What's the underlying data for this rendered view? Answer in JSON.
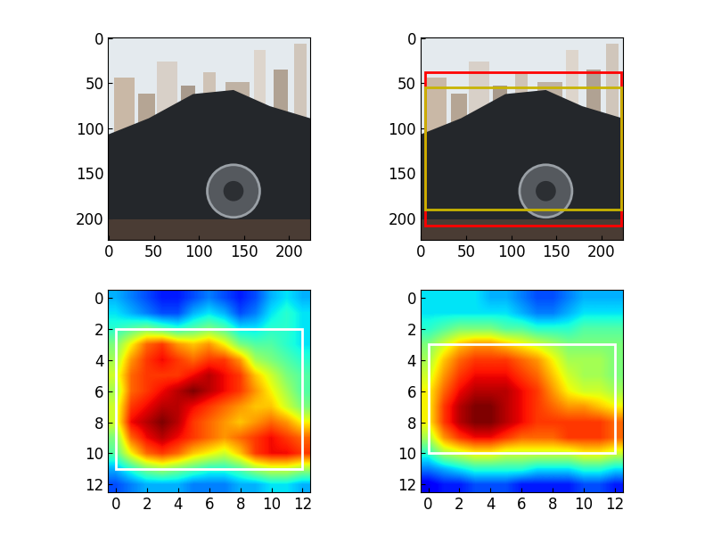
{
  "chart_data": [
    {
      "type": "image",
      "xlim": [
        -0.5,
        223.5
      ],
      "ylim": [
        223.5,
        -0.5
      ],
      "xticks": [
        0,
        50,
        100,
        150,
        200
      ],
      "yticks": [
        0,
        50,
        100,
        150,
        200
      ],
      "boxes": []
    },
    {
      "type": "image",
      "xlim": [
        -0.5,
        223.5
      ],
      "ylim": [
        223.5,
        -0.5
      ],
      "xticks": [
        0,
        50,
        100,
        150,
        200
      ],
      "yticks": [
        0,
        50,
        100,
        150,
        200
      ],
      "boxes": [
        {
          "color": "red",
          "x": [
            5,
            222
          ],
          "y": [
            38,
            208
          ]
        },
        {
          "color": "#c8b400",
          "x": [
            5,
            222
          ],
          "y": [
            55,
            190
          ]
        }
      ]
    },
    {
      "type": "heatmap",
      "xlim": [
        -0.5,
        12.5
      ],
      "ylim": [
        12.5,
        -0.5
      ],
      "xticks": [
        0,
        2,
        4,
        6,
        8,
        10,
        12
      ],
      "yticks": [
        0,
        2,
        4,
        6,
        8,
        10,
        12
      ],
      "value_range": [
        0,
        1
      ],
      "cells": [
        [
          0.3,
          0.25,
          0.2,
          0.15,
          0.15,
          0.2,
          0.25,
          0.2,
          0.15,
          0.2,
          0.3,
          0.35,
          0.3
        ],
        [
          0.35,
          0.3,
          0.25,
          0.2,
          0.2,
          0.3,
          0.35,
          0.3,
          0.2,
          0.25,
          0.35,
          0.4,
          0.35
        ],
        [
          0.4,
          0.45,
          0.5,
          0.45,
          0.4,
          0.45,
          0.5,
          0.45,
          0.35,
          0.35,
          0.4,
          0.4,
          0.35
        ],
        [
          0.5,
          0.65,
          0.8,
          0.85,
          0.75,
          0.7,
          0.75,
          0.65,
          0.5,
          0.45,
          0.45,
          0.4,
          0.35
        ],
        [
          0.55,
          0.75,
          0.85,
          0.9,
          0.85,
          0.8,
          0.85,
          0.85,
          0.75,
          0.55,
          0.5,
          0.45,
          0.4
        ],
        [
          0.6,
          0.8,
          0.85,
          0.85,
          0.85,
          0.9,
          0.95,
          0.9,
          0.85,
          0.7,
          0.6,
          0.5,
          0.45
        ],
        [
          0.55,
          0.8,
          0.85,
          0.9,
          0.95,
          1.0,
          0.95,
          0.9,
          0.85,
          0.75,
          0.65,
          0.55,
          0.45
        ],
        [
          0.6,
          0.85,
          0.9,
          0.95,
          0.95,
          0.9,
          0.85,
          0.8,
          0.75,
          0.7,
          0.7,
          0.6,
          0.5
        ],
        [
          0.6,
          0.9,
          0.95,
          1.0,
          0.95,
          0.85,
          0.8,
          0.75,
          0.7,
          0.75,
          0.8,
          0.75,
          0.65
        ],
        [
          0.5,
          0.8,
          0.9,
          0.95,
          0.9,
          0.85,
          0.8,
          0.75,
          0.8,
          0.85,
          0.9,
          0.85,
          0.8
        ],
        [
          0.45,
          0.65,
          0.8,
          0.85,
          0.8,
          0.7,
          0.65,
          0.6,
          0.7,
          0.85,
          0.9,
          0.9,
          0.85
        ],
        [
          0.3,
          0.4,
          0.5,
          0.55,
          0.5,
          0.45,
          0.4,
          0.4,
          0.45,
          0.55,
          0.6,
          0.6,
          0.55
        ],
        [
          0.2,
          0.25,
          0.3,
          0.3,
          0.3,
          0.25,
          0.25,
          0.25,
          0.3,
          0.3,
          0.35,
          0.35,
          0.3
        ]
      ],
      "boxes": [
        {
          "color": "white",
          "x": [
            0,
            12
          ],
          "y": [
            2,
            11
          ]
        }
      ]
    },
    {
      "type": "heatmap",
      "xlim": [
        -0.5,
        12.5
      ],
      "ylim": [
        12.5,
        -0.5
      ],
      "xticks": [
        0,
        2,
        4,
        6,
        8,
        10,
        12
      ],
      "yticks": [
        0,
        2,
        4,
        6,
        8,
        10,
        12
      ],
      "value_range": [
        0,
        1
      ],
      "cells": [
        [
          0.35,
          0.35,
          0.35,
          0.35,
          0.3,
          0.3,
          0.25,
          0.2,
          0.2,
          0.25,
          0.3,
          0.3,
          0.3
        ],
        [
          0.35,
          0.35,
          0.35,
          0.35,
          0.35,
          0.35,
          0.3,
          0.25,
          0.25,
          0.3,
          0.35,
          0.35,
          0.35
        ],
        [
          0.4,
          0.45,
          0.5,
          0.5,
          0.5,
          0.45,
          0.45,
          0.4,
          0.4,
          0.4,
          0.45,
          0.45,
          0.45
        ],
        [
          0.5,
          0.6,
          0.7,
          0.75,
          0.75,
          0.7,
          0.65,
          0.6,
          0.55,
          0.5,
          0.5,
          0.5,
          0.5
        ],
        [
          0.55,
          0.7,
          0.8,
          0.85,
          0.85,
          0.85,
          0.8,
          0.75,
          0.65,
          0.55,
          0.55,
          0.55,
          0.5
        ],
        [
          0.6,
          0.75,
          0.85,
          0.9,
          0.9,
          0.9,
          0.85,
          0.8,
          0.7,
          0.6,
          0.55,
          0.55,
          0.5
        ],
        [
          0.65,
          0.8,
          0.9,
          0.95,
          0.95,
          0.95,
          0.9,
          0.85,
          0.75,
          0.65,
          0.6,
          0.6,
          0.55
        ],
        [
          0.65,
          0.85,
          0.95,
          1.0,
          1.0,
          0.95,
          0.9,
          0.85,
          0.8,
          0.75,
          0.75,
          0.7,
          0.65
        ],
        [
          0.65,
          0.85,
          0.95,
          1.0,
          1.0,
          0.95,
          0.9,
          0.85,
          0.85,
          0.85,
          0.85,
          0.85,
          0.8
        ],
        [
          0.55,
          0.75,
          0.85,
          0.9,
          0.9,
          0.85,
          0.8,
          0.8,
          0.8,
          0.85,
          0.85,
          0.85,
          0.8
        ],
        [
          0.4,
          0.55,
          0.6,
          0.65,
          0.65,
          0.6,
          0.6,
          0.6,
          0.6,
          0.6,
          0.65,
          0.65,
          0.6
        ],
        [
          0.25,
          0.3,
          0.35,
          0.4,
          0.4,
          0.4,
          0.4,
          0.35,
          0.35,
          0.35,
          0.4,
          0.4,
          0.35
        ],
        [
          0.1,
          0.15,
          0.15,
          0.2,
          0.2,
          0.2,
          0.15,
          0.15,
          0.15,
          0.15,
          0.2,
          0.2,
          0.15
        ]
      ],
      "boxes": [
        {
          "color": "white",
          "x": [
            0,
            12
          ],
          "y": [
            3,
            10
          ]
        }
      ]
    }
  ]
}
